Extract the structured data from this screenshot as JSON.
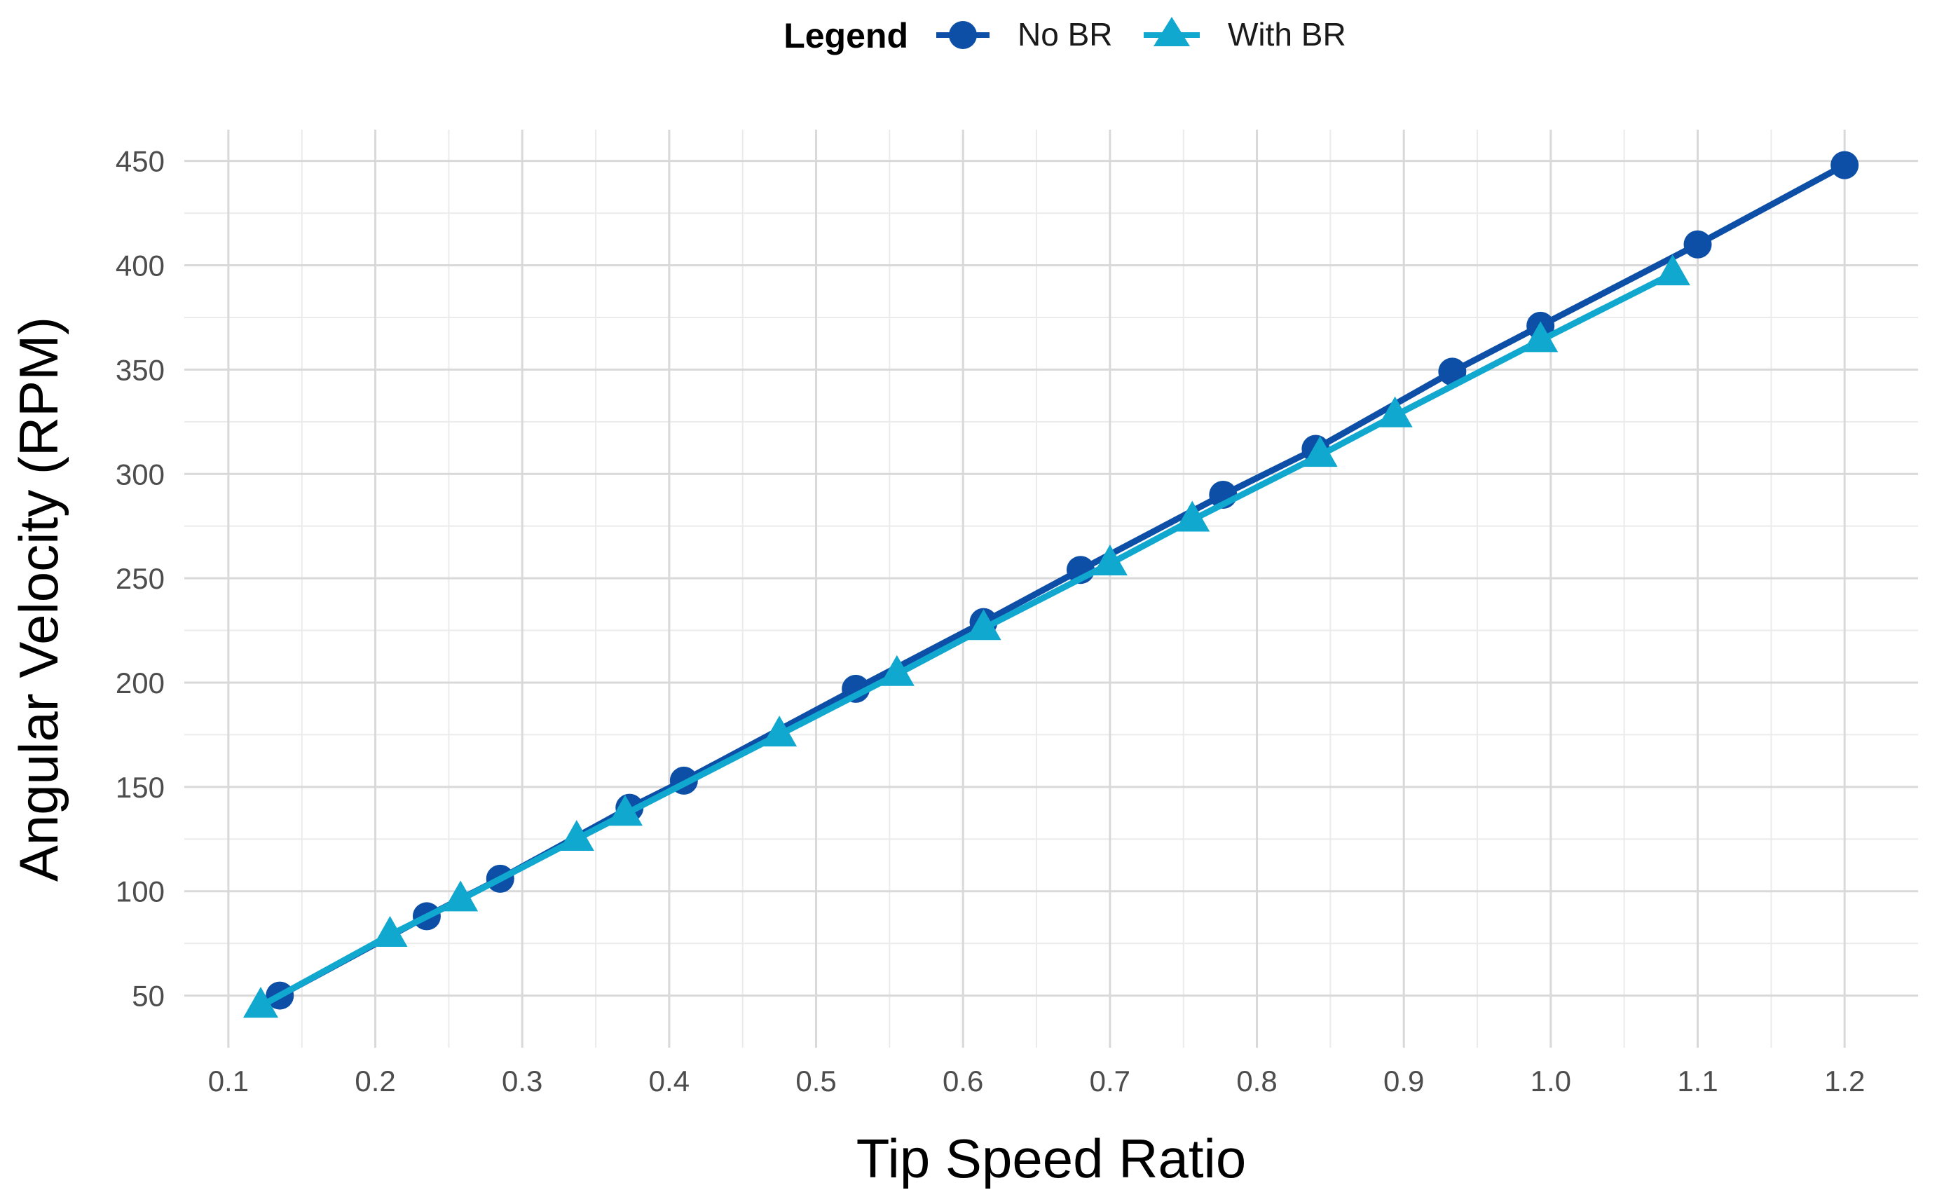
{
  "chart_data": {
    "type": "line",
    "title": "",
    "xlabel": "Tip Speed Ratio",
    "ylabel": "Angular Velocity (RPM)",
    "xlim": [
      0.07,
      1.25
    ],
    "ylim": [
      25,
      465
    ],
    "x_ticks": [
      0.1,
      0.2,
      0.3,
      0.4,
      0.5,
      0.6,
      0.7,
      0.8,
      0.9,
      1.0,
      1.1,
      1.2
    ],
    "x_tick_labels": [
      "0.1",
      "0.2",
      "0.3",
      "0.4",
      "0.5",
      "0.6",
      "0.7",
      "0.8",
      "0.9",
      "1.0",
      "1.1",
      "1.2"
    ],
    "y_ticks": [
      50,
      100,
      150,
      200,
      250,
      300,
      350,
      400,
      450
    ],
    "y_tick_labels": [
      "50",
      "100",
      "150",
      "200",
      "250",
      "300",
      "350",
      "400",
      "450"
    ],
    "grid": true,
    "legend": {
      "title": "Legend",
      "position": "top-center"
    },
    "series": [
      {
        "name": "No BR",
        "marker": "circle",
        "color": "#0d4fa6",
        "x": [
          0.135,
          0.235,
          0.285,
          0.373,
          0.41,
          0.527,
          0.614,
          0.68,
          0.777,
          0.84,
          0.933,
          0.993,
          1.1,
          1.2
        ],
        "y": [
          50,
          88,
          106,
          140,
          153,
          197,
          229,
          254,
          290,
          312,
          349,
          371,
          410,
          448
        ]
      },
      {
        "name": "With BR",
        "marker": "triangle",
        "color": "#10a8cf",
        "x": [
          0.122,
          0.21,
          0.258,
          0.337,
          0.37,
          0.475,
          0.555,
          0.614,
          0.7,
          0.756,
          0.843,
          0.894,
          0.993,
          1.083
        ],
        "y": [
          45,
          79,
          96,
          125,
          137,
          175,
          204,
          226,
          257,
          278,
          309,
          328,
          364,
          396
        ]
      }
    ]
  }
}
